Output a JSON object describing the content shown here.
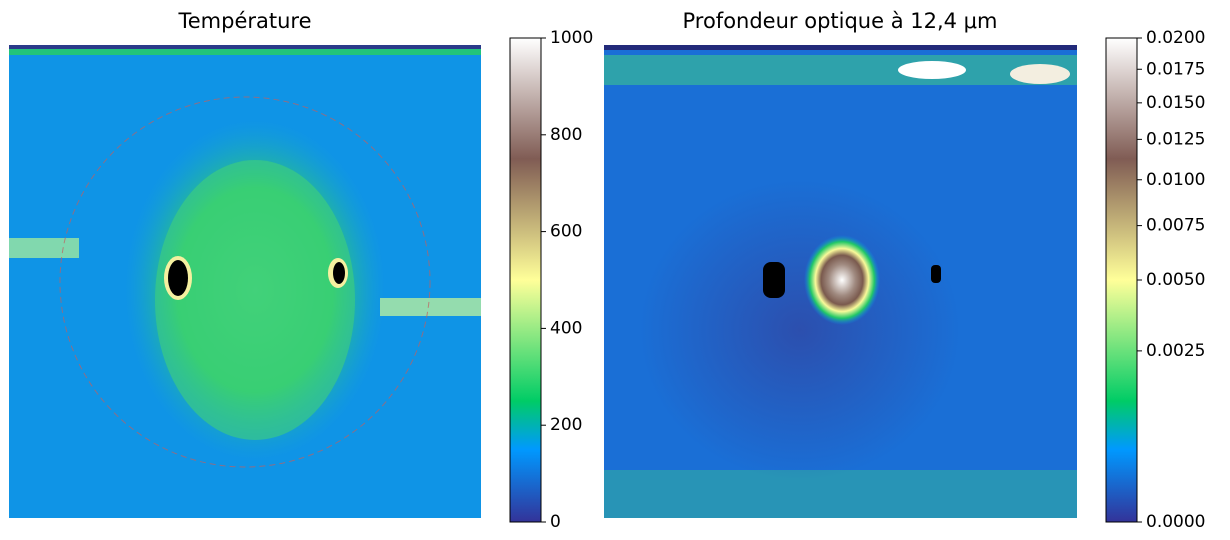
{
  "chart_data": [
    {
      "type": "heatmap",
      "title": "Température",
      "colormap": "terrain",
      "norm": "linear",
      "clim": [
        0,
        1000
      ],
      "cticks": [
        0,
        200,
        400,
        600,
        800,
        1000
      ]
    },
    {
      "type": "heatmap",
      "title": "Profondeur optique à 12,4 μm",
      "colormap": "terrain",
      "norm": "power",
      "gamma": 0.5,
      "clim": [
        0,
        0.02
      ],
      "cticks": [
        {
          "value": 0,
          "label": "0.0000"
        },
        {
          "value": 0.0025,
          "label": "0.0025"
        },
        {
          "value": 0.005,
          "label": "0.0050"
        },
        {
          "value": 0.0075,
          "label": "0.0075"
        },
        {
          "value": 0.01,
          "label": "0.0100"
        },
        {
          "value": 0.0125,
          "label": "0.0125"
        },
        {
          "value": 0.015,
          "label": "0.0150"
        },
        {
          "value": 0.0175,
          "label": "0.0175"
        },
        {
          "value": 0.02,
          "label": "0.0200"
        }
      ]
    }
  ]
}
